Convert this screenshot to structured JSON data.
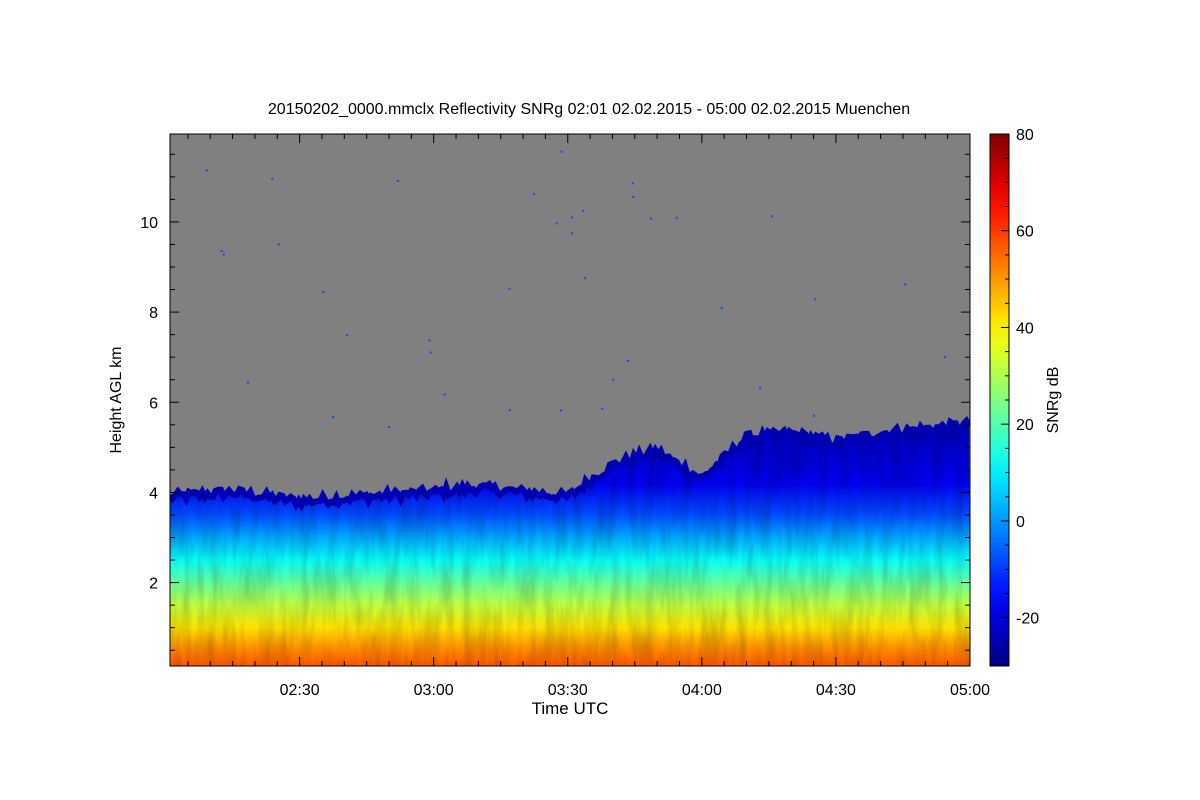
{
  "chart_data": {
    "type": "heatmap",
    "title": "20150202_0000.mmclx Reflectivity SNRg   02:01 02.02.2015 - 05:00 02.02.2015 Muenchen",
    "xlabel": "Time UTC",
    "ylabel": "Height AGL km",
    "xlim": [
      "02:01",
      "05:00"
    ],
    "ylim": [
      0.15,
      11.95
    ],
    "x_ticks": [
      "02:30",
      "03:00",
      "03:30",
      "04:00",
      "04:30",
      "05:00"
    ],
    "y_ticks": [
      2,
      4,
      6,
      8,
      10
    ],
    "colorbar": {
      "label": "SNRg dB",
      "range": [
        -30,
        80
      ],
      "ticks": [
        -20,
        0,
        20,
        40,
        60,
        80
      ],
      "colormap": "jet"
    },
    "no_signal_color": "#808080",
    "cloud_top_km": [
      {
        "time": "02:01",
        "km": 3.9
      },
      {
        "time": "02:15",
        "km": 4.0
      },
      {
        "time": "02:30",
        "km": 3.8
      },
      {
        "time": "02:45",
        "km": 3.9
      },
      {
        "time": "03:00",
        "km": 4.0
      },
      {
        "time": "03:10",
        "km": 4.1
      },
      {
        "time": "03:20",
        "km": 4.0
      },
      {
        "time": "03:30",
        "km": 3.9
      },
      {
        "time": "03:40",
        "km": 4.6
      },
      {
        "time": "03:50",
        "km": 4.9
      },
      {
        "time": "04:00",
        "km": 4.3
      },
      {
        "time": "04:10",
        "km": 5.2
      },
      {
        "time": "04:20",
        "km": 5.3
      },
      {
        "time": "04:30",
        "km": 5.1
      },
      {
        "time": "04:40",
        "km": 5.3
      },
      {
        "time": "04:50",
        "km": 5.4
      },
      {
        "time": "05:00",
        "km": 5.5
      }
    ]
  }
}
